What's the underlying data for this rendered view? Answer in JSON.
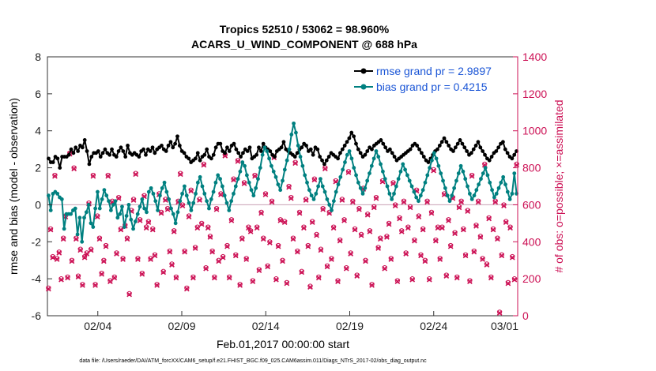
{
  "chart_data": {
    "type": "line",
    "title": "Tropics 52510 / 53062 = 98.960%",
    "subtitle": "ACARS_U_WIND_COMPONENT @ 688 hPa",
    "xlabel": "Feb.01,2017 00:00:00 start",
    "ylabel_left": "rmse and bias (model - observation)",
    "ylabel_right": "# of obs: o=possible; ×=assimilated",
    "footnote": "data file: /Users/raeder/DAI/ATM_forcXX/CAM6_setup/f.e21.FHIST_BGC.f09_025.CAM6assim.011/Diags_NTrS_2017-02/obs_diag_output.nc",
    "xlim": [
      0,
      28
    ],
    "ylim_left": [
      -6,
      8
    ],
    "ylim_right": [
      0,
      1400
    ],
    "x_ticks": [
      3,
      8,
      13,
      18,
      23,
      28
    ],
    "x_tick_labels": [
      "02/04",
      "02/09",
      "02/14",
      "02/19",
      "02/24",
      "03/01"
    ],
    "y_ticks_left": [
      "-6",
      "-4",
      "-2",
      "0",
      "2",
      "4",
      "6",
      "8"
    ],
    "y_ticks_right": [
      "0",
      "200",
      "400",
      "600",
      "800",
      "1000",
      "1200",
      "1400"
    ],
    "colors": {
      "rmse": "#000000",
      "bias": "#008080",
      "obs": "#cc1155",
      "legend_text": "#1a55d6",
      "zero_line": "#c8a0b4"
    },
    "series": [
      {
        "name": "rmse grand pr = 2.9897",
        "axis": "left",
        "values": [
          2.5,
          2.3,
          2.3,
          2.6,
          2.5,
          2.0,
          2.6,
          2.6,
          2.6,
          2.7,
          3.0,
          2.8,
          3.1,
          2.9,
          3.2,
          3.1,
          3.5,
          2.9,
          2.2,
          2.6,
          2.8,
          2.8,
          2.9,
          2.6,
          2.8,
          3.0,
          2.8,
          2.7,
          3.0,
          2.7,
          2.6,
          2.9,
          3.1,
          2.9,
          2.6,
          3.2,
          2.8,
          2.7,
          2.8,
          2.7,
          2.6,
          2.9,
          3.0,
          2.7,
          3.0,
          2.9,
          3.1,
          2.8,
          3.0,
          3.1,
          3.2,
          3.0,
          2.9,
          3.2,
          3.4,
          3.1,
          3.3,
          3.7,
          3.2,
          2.9,
          2.8,
          2.6,
          2.5,
          2.3,
          2.4,
          2.5,
          2.8,
          2.4,
          2.6,
          2.7,
          3.0,
          2.6,
          2.5,
          2.7,
          3.1,
          3.3,
          3.3,
          2.9,
          2.8,
          3.1,
          2.9,
          3.2,
          3.3,
          3.0,
          2.8,
          2.6,
          2.8,
          3.0,
          2.9,
          3.1,
          2.5,
          2.6,
          2.7,
          3.1,
          2.9,
          3.3,
          3.1,
          3.0,
          2.9,
          2.7,
          2.6,
          2.9,
          3.0,
          3.1,
          3.4,
          3.0,
          2.9,
          2.8,
          2.7,
          2.6,
          2.8,
          3.0,
          3.1,
          3.3,
          3.2,
          2.9,
          3.0,
          2.7,
          3.1,
          3.0,
          2.6,
          2.4,
          2.2,
          2.4,
          2.6,
          2.8,
          2.7,
          2.6,
          2.5,
          2.8,
          3.0,
          3.2,
          3.4,
          3.6,
          3.9,
          3.7,
          3.3,
          3.0,
          2.8,
          2.6,
          2.7,
          2.9,
          3.1,
          3.0,
          3.2,
          3.3,
          3.4,
          3.5,
          3.3,
          3.1,
          2.9,
          3.0,
          2.8,
          2.6,
          2.4,
          2.5,
          2.6,
          2.7,
          2.8,
          2.9,
          3.0,
          3.2,
          3.3,
          3.2,
          3.0,
          2.8,
          2.6,
          2.4,
          2.3,
          2.5,
          2.7,
          2.9,
          3.0,
          3.2,
          3.4,
          3.6,
          3.4,
          3.2,
          3.0,
          2.9,
          3.1,
          3.3,
          3.5,
          3.3,
          3.1,
          2.9,
          2.7,
          2.8,
          3.0,
          3.2,
          3.4,
          3.1,
          2.9,
          2.7,
          2.5,
          2.4,
          2.6,
          2.8,
          2.9,
          3.1,
          3.3,
          3.4,
          3.0,
          2.8,
          2.6,
          2.5,
          2.7,
          2.9
        ]
      },
      {
        "name": "bias grand pr = 0.4215",
        "axis": "left",
        "values": [
          0.5,
          -0.3,
          0.6,
          0.7,
          0.6,
          0.4,
          0.3,
          -1.3,
          -0.5,
          -0.5,
          -0.5,
          -0.3,
          -0.2,
          -1.6,
          -0.7,
          -2.0,
          -0.7,
          -0.4,
          0.0,
          -1.0,
          -1.2,
          -0.2,
          0.7,
          -0.2,
          0.3,
          0.8,
          0.5,
          0.2,
          -0.3,
          0.0,
          0.2,
          -0.7,
          -0.5,
          -0.1,
          -1.2,
          -0.6,
          0.0,
          -0.8,
          -1.3,
          -0.9,
          -0.5,
          -0.1,
          0.3,
          -0.2,
          -0.4,
          0.7,
          0.9,
          0.6,
          0.2,
          -0.3,
          0.5,
          0.9,
          1.2,
          0.7,
          0.3,
          -0.2,
          -0.5,
          -1.0,
          -0.4,
          0.2,
          0.6,
          1.0,
          0.5,
          0.1,
          -0.3,
          0.1,
          0.6,
          1.2,
          1.5,
          1.0,
          0.6,
          0.2,
          -0.2,
          0.3,
          0.7,
          1.2,
          1.6,
          1.4,
          1.0,
          0.5,
          0.1,
          -0.3,
          0.2,
          0.6,
          1.0,
          1.4,
          1.8,
          2.3,
          2.1,
          1.6,
          1.2,
          0.8,
          0.5,
          0.9,
          1.4,
          2.0,
          2.7,
          3.1,
          2.9,
          2.5,
          2.1,
          1.8,
          1.5,
          1.1,
          0.8,
          1.3,
          1.9,
          2.4,
          3.0,
          3.8,
          4.4,
          3.9,
          3.2,
          2.6,
          2.1,
          1.6,
          1.2,
          0.8,
          0.5,
          0.3,
          0.6,
          1.0,
          1.4,
          1.0,
          0.7,
          0.3,
          0.0,
          -0.3,
          0.2,
          0.7,
          1.1,
          1.5,
          1.9,
          2.3,
          2.7,
          2.9,
          2.5,
          2.0,
          1.6,
          1.2,
          0.9,
          0.6,
          0.9,
          1.3,
          1.7,
          2.1,
          2.5,
          2.9,
          2.6,
          2.2,
          1.8,
          1.4,
          1.0,
          0.6,
          0.3,
          0.6,
          1.0,
          1.4,
          1.8,
          2.2,
          1.9,
          1.6,
          1.3,
          1.0,
          0.7,
          0.4,
          0.2,
          0.5,
          0.8,
          1.2,
          1.6,
          2.0,
          2.4,
          2.8,
          2.5,
          2.1,
          1.7,
          1.3,
          0.9,
          0.5,
          0.2,
          0.5,
          0.9,
          1.3,
          1.7,
          2.1,
          1.8,
          1.4,
          1.0,
          0.6,
          0.3,
          0.5,
          0.8,
          1.1,
          1.4,
          1.7,
          2.0,
          1.6,
          1.2,
          0.8,
          0.4,
          0.6,
          0.9,
          1.2,
          1.5,
          1.1,
          0.7,
          0.3,
          0.6,
          1.7,
          0.6
        ]
      },
      {
        "name": "possible",
        "axis": "right",
        "marker": "o",
        "values": [
          150,
          470,
          320,
          760,
          310,
          345,
          200,
          420,
          540,
          210,
          880,
          300,
          800,
          420,
          215,
          360,
          170,
          320,
          340,
          610,
          360,
          760,
          170,
          540,
          420,
          230,
          300,
          380,
          760,
          190,
          620,
          210,
          340,
          640,
          470,
          310,
          490,
          420,
          120,
          570,
          630,
          770,
          310,
          520,
          230,
          650,
          480,
          510,
          310,
          470,
          330,
          170,
          660,
          560,
          240,
          630,
          580,
          350,
          280,
          460,
          210,
          620,
          770,
          600,
          350,
          150,
          540,
          680,
          210,
          370,
          480,
          630,
          500,
          820,
          260,
          480,
          430,
          350,
          210,
          580,
          300,
          660,
          320,
          870,
          380,
          210,
          520,
          740,
          330,
          840,
          170,
          420,
          720,
          310,
          480,
          460,
          190,
          760,
          480,
          250,
          560,
          420,
          660,
          270,
          400,
          620,
          860,
          200,
          380,
          520,
          300,
          510,
          180,
          700,
          640,
          420,
          830,
          350,
          560,
          240,
          480,
          630,
          380,
          160,
          510,
          740,
          440,
          210,
          360,
          580,
          800,
          270,
          560,
          310,
          480,
          730,
          190,
          410,
          630,
          520,
          260,
          780,
          340,
          620,
          470,
          220,
          580,
          440,
          690,
          300,
          550,
          460,
          170,
          590,
          640,
          370,
          420,
          730,
          260,
          430,
          500,
          310,
          720,
          600,
          190,
          530,
          460,
          620,
          340,
          480,
          590,
          200,
          410,
          680,
          540,
          330,
          470,
          300,
          620,
          200,
          560,
          790,
          410,
          480,
          310,
          480,
          660,
          220,
          520,
          380,
          640,
          450,
          210,
          590,
          620,
          470,
          330,
          570,
          190,
          760,
          350,
          490,
          620,
          430,
          310,
          820,
          280,
          530,
          210,
          470,
          620,
          420,
          20,
          330,
          600,
          510,
          180,
          480,
          320,
          200,
          820
        ]
      },
      {
        "name": "assimilated",
        "axis": "right",
        "marker": "x",
        "values": [
          145,
          465,
          315,
          755,
          305,
          340,
          195,
          415,
          535,
          205,
          875,
          295,
          795,
          415,
          210,
          355,
          165,
          315,
          335,
          605,
          355,
          755,
          165,
          535,
          415,
          225,
          295,
          375,
          755,
          185,
          615,
          205,
          335,
          635,
          465,
          305,
          485,
          415,
          115,
          565,
          625,
          765,
          305,
          515,
          225,
          645,
          475,
          505,
          305,
          465,
          325,
          165,
          655,
          555,
          235,
          625,
          575,
          345,
          275,
          455,
          205,
          615,
          765,
          595,
          345,
          145,
          535,
          675,
          205,
          365,
          475,
          625,
          495,
          815,
          255,
          475,
          425,
          345,
          205,
          575,
          295,
          655,
          315,
          865,
          375,
          205,
          515,
          735,
          325,
          835,
          165,
          415,
          715,
          305,
          475,
          455,
          185,
          755,
          475,
          245,
          555,
          415,
          655,
          265,
          395,
          615,
          855,
          195,
          375,
          515,
          295,
          505,
          175,
          695,
          635,
          415,
          825,
          345,
          555,
          235,
          475,
          625,
          375,
          155,
          505,
          735,
          435,
          205,
          355,
          575,
          795,
          265,
          555,
          305,
          475,
          725,
          185,
          405,
          625,
          515,
          255,
          775,
          335,
          615,
          465,
          215,
          575,
          435,
          685,
          295,
          545,
          455,
          165,
          585,
          635,
          365,
          415,
          725,
          255,
          425,
          495,
          305,
          715,
          595,
          185,
          525,
          455,
          615,
          335,
          475,
          585,
          195,
          405,
          675,
          535,
          325,
          465,
          295,
          615,
          195,
          555,
          785,
          405,
          475,
          305,
          475,
          655,
          215,
          515,
          375,
          635,
          445,
          205,
          585,
          615,
          465,
          325,
          565,
          185,
          755,
          345,
          485,
          615,
          425,
          305,
          815,
          275,
          525,
          205,
          465,
          615,
          415,
          15,
          325,
          595,
          505,
          175,
          475,
          315,
          195,
          815
        ]
      }
    ],
    "legend": {
      "placement": "top-right",
      "entries": [
        "rmse grand pr = 2.9897",
        "bias grand pr = 0.4215"
      ]
    }
  }
}
